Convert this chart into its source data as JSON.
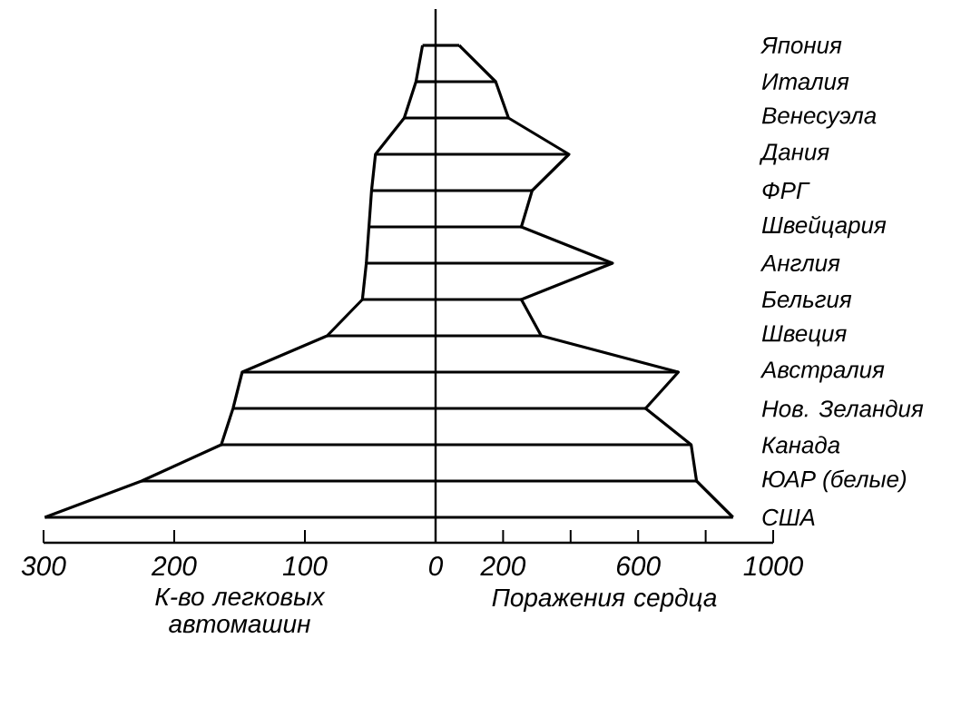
{
  "chart_data": [
    {
      "type": "bar",
      "orientation": "horizontal",
      "categories": [
        null,
        null,
        null,
        null,
        null,
        null,
        null,
        null,
        null,
        null,
        null,
        null,
        null,
        null
      ],
      "series": [
        {
          "color": "#000000",
          "values": [
            10,
            15,
            24,
            46,
            49,
            51,
            53,
            56,
            83,
            148,
            155,
            164,
            225,
            299
          ]
        }
      ],
      "xlim": [
        300,
        0
      ],
      "xticks": [
        300,
        200,
        100,
        0
      ],
      "xlabel": "К-во легковых автомашин",
      "tick_labels": "x"
    },
    {
      "type": "bar",
      "orientation": "horizontal",
      "categories": [
        "Япония",
        "Италия",
        "Венесуэла",
        "Дания",
        "ФРГ",
        "Швейцария",
        "Англия",
        "Бельгия",
        "Швеция",
        "Австралия",
        "Нов. Зеландия",
        "Канада",
        "ЮАР (белые)",
        "США"
      ],
      "series": [
        {
          "color": "#000000",
          "values": [
            70,
            178,
            216,
            395,
            286,
            254,
            524,
            254,
            313,
            719,
            622,
            757,
            773,
            881
          ]
        }
      ],
      "xlim": [
        0,
        1000
      ],
      "xticks": [
        {
          "value": 0,
          "label": null
        },
        200,
        {
          "value": 400,
          "label": null
        },
        600,
        {
          "value": 800,
          "label": null
        },
        1000
      ],
      "xlabel": "Поражения сердца"
    }
  ]
}
